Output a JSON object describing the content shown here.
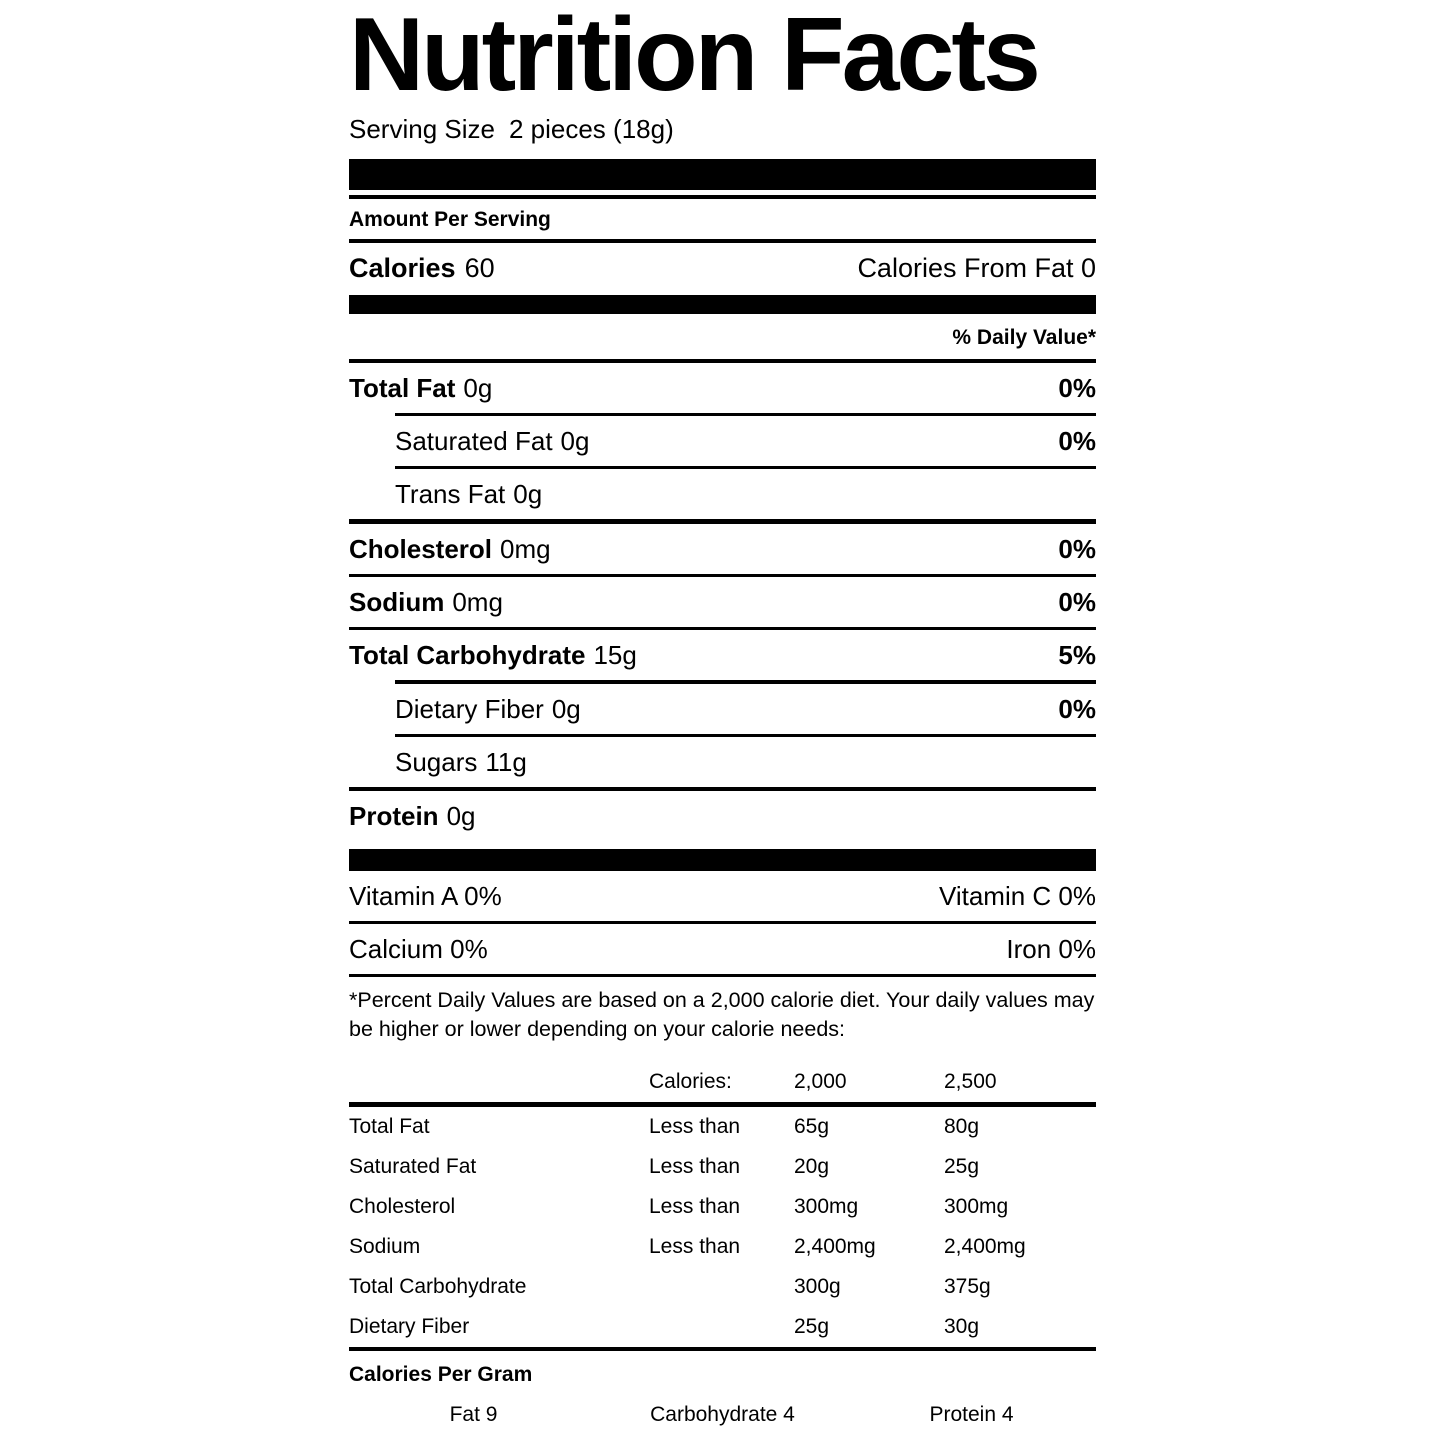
{
  "title": "Nutrition Facts",
  "serving": {
    "label": "Serving Size",
    "value": "2 pieces (18g)"
  },
  "amount_per_serving": "Amount Per Serving",
  "calories": {
    "label": "Calories",
    "value": "60",
    "from_fat": "Calories From Fat 0"
  },
  "daily_value_header": "% Daily Value*",
  "nutrients": [
    {
      "name": "Total Fat",
      "amount": "0g",
      "percent": "0%"
    },
    {
      "name": "Saturated Fat",
      "amount": "0g",
      "percent": "0%"
    },
    {
      "name": "Trans Fat",
      "amount": "0g",
      "percent": ""
    },
    {
      "name": "Cholesterol",
      "amount": "0mg",
      "percent": "0%"
    },
    {
      "name": "Sodium",
      "amount": "0mg",
      "percent": "0%"
    },
    {
      "name": "Total Carbohydrate",
      "amount": "15g",
      "percent": "5%"
    },
    {
      "name": "Dietary Fiber",
      "amount": "0g",
      "percent": "0%"
    },
    {
      "name": "Sugars",
      "amount": "11g",
      "percent": ""
    },
    {
      "name": "Protein",
      "amount": "0g",
      "percent": ""
    }
  ],
  "vitamins": [
    {
      "left": "Vitamin A 0%",
      "right": "Vitamin C 0%"
    },
    {
      "left": "Calcium 0%",
      "right": "Iron 0%"
    }
  ],
  "footnote": "*Percent Daily Values are based on a 2,000 calorie diet. Your daily values may be higher or lower depending on your calorie needs:",
  "dv_table": {
    "header": {
      "c1": "Calories:",
      "c2": "2,000",
      "c3": "2,500"
    },
    "rows": [
      {
        "name": "Total Fat",
        "qualifier": "Less than",
        "v2000": "65g",
        "v2500": "80g"
      },
      {
        "name": "Saturated Fat",
        "qualifier": "Less than",
        "v2000": "20g",
        "v2500": "25g"
      },
      {
        "name": "Cholesterol",
        "qualifier": "Less than",
        "v2000": "300mg",
        "v2500": "300mg"
      },
      {
        "name": "Sodium",
        "qualifier": "Less than",
        "v2000": "2,400mg",
        "v2500": "2,400mg"
      },
      {
        "name": "Total Carbohydrate",
        "qualifier": "",
        "v2000": "300g",
        "v2500": "375g"
      },
      {
        "name": "Dietary Fiber",
        "qualifier": "",
        "v2000": "25g",
        "v2500": "30g"
      }
    ]
  },
  "calories_per_gram": {
    "title": "Calories Per Gram",
    "items": [
      "Fat 9",
      "Carbohydrate 4",
      "Protein 4"
    ]
  }
}
